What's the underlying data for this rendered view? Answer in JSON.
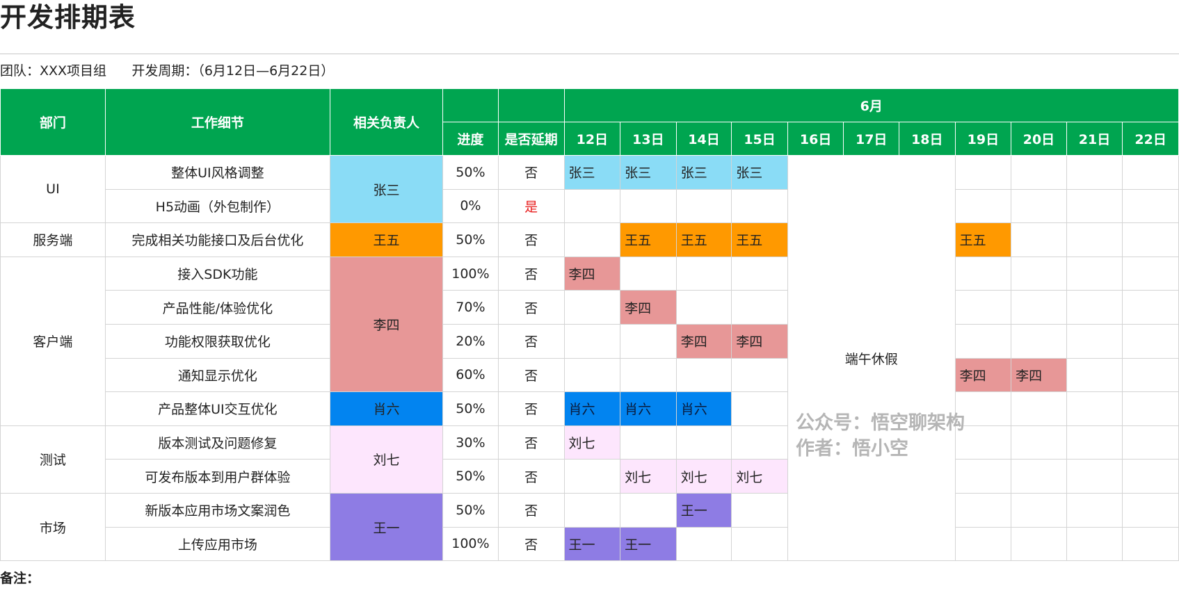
{
  "title": "开发排期表",
  "team": "团队：XXX项目组",
  "period": "开发周期：（6月12日—6月22日）",
  "headers": {
    "dept": "部门",
    "task": "工作细节",
    "owner": "相关负责人",
    "progress": "进度",
    "delay": "是否延期",
    "month": "6月",
    "days": [
      "12日",
      "13日",
      "14日",
      "15日",
      "16日",
      "17日",
      "18日",
      "19日",
      "20日",
      "21日",
      "22日"
    ]
  },
  "holiday_label": "端午休假",
  "colors": {
    "header_green": "#00A550",
    "zhangsan": "#8ADCF6",
    "wangwu": "#FF9900",
    "lisi": "#E79797",
    "xiaoliu": "#0284F0",
    "liuqi": "#FDE6FD",
    "wangyi": "#8E7CE4"
  },
  "departments": [
    {
      "name": "UI",
      "owner": "张三",
      "owner_color": "#8ADCF6",
      "rows": [
        {
          "task": "整体UI风格调整",
          "progress": "50%",
          "delayed": "否",
          "days": {
            "12日": "张三",
            "13日": "张三",
            "14日": "张三",
            "15日": "张三"
          }
        },
        {
          "task": "H5动画（外包制作）",
          "progress": "0%",
          "delayed": "是",
          "days": {}
        }
      ]
    },
    {
      "name": "服务端",
      "owner": "王五",
      "owner_color": "#FF9900",
      "rows": [
        {
          "task": "完成相关功能接口及后台优化",
          "progress": "50%",
          "delayed": "否",
          "days": {
            "13日": "王五",
            "14日": "王五",
            "15日": "王五",
            "19日": "王五"
          }
        }
      ]
    },
    {
      "name": "客户端",
      "owner": "李四",
      "owner_color": "#E79797",
      "rows": [
        {
          "task": "接入SDK功能",
          "progress": "100%",
          "delayed": "否",
          "days": {
            "12日": "李四"
          }
        },
        {
          "task": "产品性能/体验优化",
          "progress": "70%",
          "delayed": "否",
          "days": {
            "13日": "李四"
          }
        },
        {
          "task": "功能权限获取优化",
          "progress": "20%",
          "delayed": "否",
          "days": {
            "14日": "李四",
            "15日": "李四"
          }
        },
        {
          "task": "通知显示优化",
          "progress": "60%",
          "delayed": "否",
          "days": {
            "19日": "李四",
            "20日": "李四"
          }
        },
        {
          "task": "产品整体UI交互优化",
          "progress": "50%",
          "delayed": "否",
          "owner": "肖六",
          "owner_color": "#0284F0",
          "days": {
            "12日": "肖六",
            "13日": "肖六",
            "14日": "肖六"
          }
        }
      ]
    },
    {
      "name": "测试",
      "owner": "刘七",
      "owner_color": "#FDE6FD",
      "rows": [
        {
          "task": "版本测试及问题修复",
          "progress": "30%",
          "delayed": "否",
          "days": {
            "12日": "刘七"
          }
        },
        {
          "task": "可发布版本到用户群体验",
          "progress": "50%",
          "delayed": "否",
          "days": {
            "13日": "刘七",
            "14日": "刘七",
            "15日": "刘七"
          }
        }
      ]
    },
    {
      "name": "市场",
      "owner": "王一",
      "owner_color": "#8E7CE4",
      "rows": [
        {
          "task": "新版本应用市场文案润色",
          "progress": "50%",
          "delayed": "否",
          "days": {
            "14日": "王一"
          }
        },
        {
          "task": "上传应用市场",
          "progress": "100%",
          "delayed": "否",
          "days": {
            "12日": "王一",
            "13日": "王一"
          }
        }
      ]
    }
  ],
  "watermark": [
    "公众号：悟空聊架构",
    "作者：悟小空"
  ],
  "note_label": "备注："
}
